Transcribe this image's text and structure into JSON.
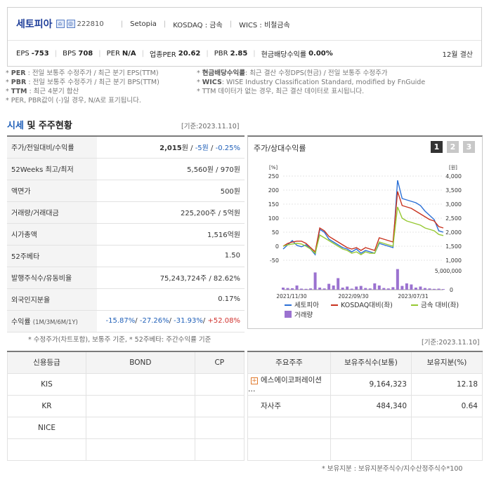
{
  "header": {
    "company_name": "세토피아",
    "code": "222810",
    "english_name": "Setopia",
    "market": "KOSDAQ : 금속",
    "wics": "WICS : 비철금속",
    "metrics": [
      {
        "key": "EPS",
        "value": "-753"
      },
      {
        "key": "BPS",
        "value": "708"
      },
      {
        "key": "PER",
        "value": "N/A"
      },
      {
        "key": "업종PER",
        "value": "20.62"
      },
      {
        "key": "PBR",
        "value": "2.85"
      },
      {
        "key": "현금배당수익률",
        "value": "0.00%"
      }
    ],
    "settlement": "12월 결산"
  },
  "notes": {
    "left": [
      {
        "term": "PER",
        "text": ": 전일 보통주 수정주가 / 최근 분기 EPS(TTM)"
      },
      {
        "term": "PBR",
        "text": ": 전일 보통주 수정주가 / 최근 분기 BPS(TTM)"
      },
      {
        "term": "TTM",
        "text": ": 최근 4분기 합산"
      },
      {
        "term": "",
        "text": "PER, PBR값이 (-)일 경우, N/A로 표기됩니다."
      }
    ],
    "right": [
      {
        "term": "현금배당수익률",
        "text": ": 최근 결산 수정DPS(현금) / 전일 보통주 수정주가"
      },
      {
        "term": "WICS",
        "text": ": WISE Industry Classification Standard, modified by FnGuide"
      },
      {
        "term": "",
        "text": "TTM 데이터가 없는 경우, 최근 결산 데이터로 표시됩니다."
      }
    ]
  },
  "section": {
    "title_blue": "시세",
    "title_rest": " 및 주주현황",
    "basis": "[기준:2023.11.10]"
  },
  "quote": {
    "price_label": "주가/전일대비/수익률",
    "price": "2,015",
    "price_unit": "원",
    "change": "-5원",
    "change_rate": "-0.25%",
    "rows": [
      {
        "label": "52Weeks 최고/최저",
        "value": "5,560원 / 970원"
      },
      {
        "label": "액면가",
        "value": "500원"
      },
      {
        "label": "거래량/거래대금",
        "value": "225,200주 / 5억원"
      },
      {
        "label": "시가총액",
        "value": "1,516억원"
      },
      {
        "label": "52주베타",
        "value": "1.50"
      },
      {
        "label": "발행주식수/유동비율",
        "value": "75,243,724주 / 82.62%"
      },
      {
        "label": "외국인지분율",
        "value": "0.17%"
      }
    ],
    "return_label": "수익률",
    "return_sub": "(1M/3M/6M/1Y)",
    "returns": [
      "-15.87%",
      "-27.26%",
      "-31.93%",
      "+52.08%"
    ],
    "footnote": "* 수정주가(차트포함), 보통주 기준, * 52주베타: 주간수익률 기준"
  },
  "chart_box": {
    "title": "주가/상대수익률",
    "pages": [
      "1",
      "2",
      "3"
    ]
  },
  "chart_data": {
    "type": "line",
    "left_axis_label": "[%]",
    "right_axis_label": "[원]",
    "y_left_ticks": [
      "250",
      "200",
      "150",
      "100",
      "50",
      "0",
      "-50"
    ],
    "y_right_ticks": [
      "4,000",
      "3,500",
      "3,000",
      "2,500",
      "2,000",
      "1,500",
      "1,000"
    ],
    "volume_ticks": [
      "5,000,000",
      "0"
    ],
    "x_ticks": [
      "2021/11/30",
      "2022/09/30",
      "2023/07/31"
    ],
    "ylim": [
      -50,
      250
    ],
    "series": [
      {
        "name": "세토피아",
        "color": "#2a6fd6",
        "values": [
          -10,
          5,
          20,
          3,
          -2,
          5,
          -10,
          -30,
          60,
          50,
          25,
          15,
          5,
          -5,
          -10,
          -20,
          -10,
          -25,
          -15,
          -20,
          -25,
          10,
          5,
          0,
          -5,
          235,
          170,
          165,
          160,
          155,
          145,
          125,
          110,
          95,
          55,
          50
        ]
      },
      {
        "name": "KOSDAQ대비(좌)",
        "color": "#c8321e",
        "values": [
          0,
          10,
          15,
          18,
          18,
          10,
          -5,
          -20,
          65,
          55,
          35,
          25,
          15,
          5,
          -5,
          -10,
          -5,
          -15,
          -5,
          -10,
          -15,
          30,
          25,
          20,
          15,
          195,
          145,
          140,
          135,
          125,
          115,
          105,
          95,
          90,
          70,
          65
        ]
      },
      {
        "name": "금속 대비(좌)",
        "color": "#96c832",
        "values": [
          0,
          5,
          8,
          10,
          8,
          0,
          -10,
          -25,
          40,
          30,
          20,
          10,
          0,
          -10,
          -15,
          -25,
          -20,
          -30,
          -20,
          -25,
          -25,
          15,
          10,
          5,
          0,
          140,
          100,
          90,
          85,
          80,
          75,
          65,
          60,
          55,
          42,
          38
        ]
      }
    ],
    "volume": {
      "name": "거래량",
      "color": "#9b72d0",
      "values": [
        0.1,
        0.08,
        0.07,
        0.2,
        0.05,
        0.04,
        0.06,
        0.82,
        0.1,
        0.06,
        0.28,
        0.2,
        0.55,
        0.1,
        0.15,
        0.05,
        0.15,
        0.18,
        0.08,
        0.06,
        0.3,
        0.2,
        0.08,
        0.06,
        0.12,
        0.98,
        0.18,
        0.3,
        0.25,
        0.1,
        0.15,
        0.08,
        0.06,
        0.04,
        0.05,
        0.03
      ]
    }
  },
  "basis2": "[기준:2023.11.10]",
  "credit": {
    "headers": [
      "신용등급",
      "BOND",
      "CP"
    ],
    "agencies": [
      "KIS",
      "KR",
      "NICE"
    ]
  },
  "holders": {
    "headers": [
      "주요주주",
      "보유주식수(보통)",
      "보유지분(%)"
    ],
    "rows": [
      {
        "name": "에스에이코퍼레이션 …",
        "shares": "9,164,323",
        "pct": "12.18"
      },
      {
        "name": "자사주",
        "shares": "484,340",
        "pct": "0.64"
      }
    ],
    "footnote": "* 보유지분 : 보유지분주식수/지수산정주식수*100"
  }
}
